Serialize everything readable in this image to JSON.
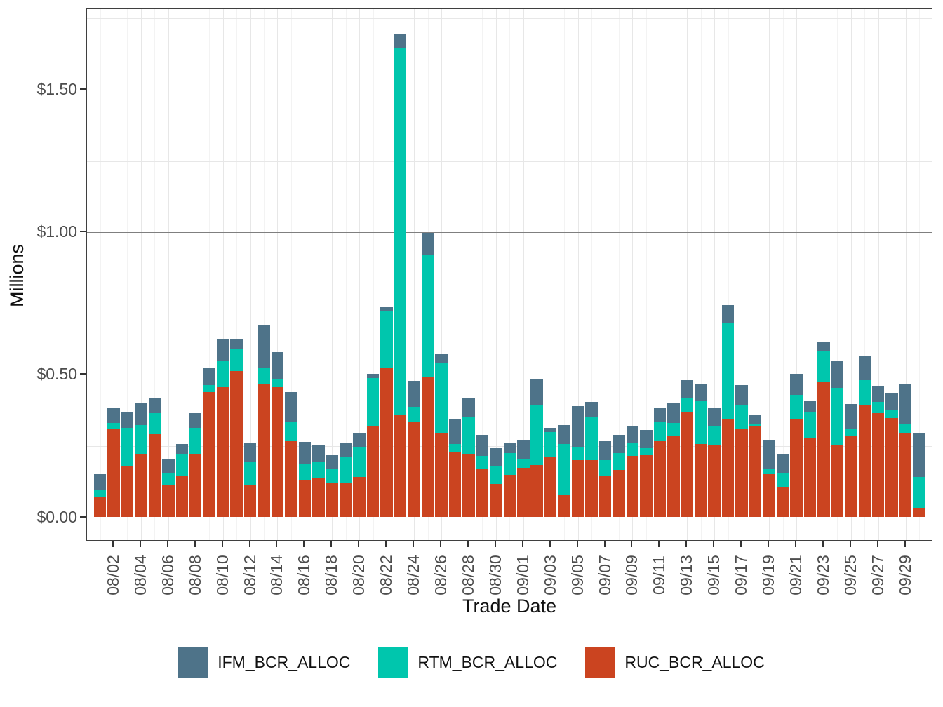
{
  "y_axis": {
    "title": "Millions",
    "tick_labels": [
      "$0.00",
      "$0.50",
      "$1.00",
      "$1.50"
    ],
    "tick_values": [
      0,
      0.5,
      1.0,
      1.5
    ],
    "minor_tick_values": [
      0.25,
      0.75,
      1.25,
      1.75
    ]
  },
  "x_axis": {
    "title": "Trade Date",
    "tick_labels": [
      "08/02",
      "08/04",
      "08/06",
      "08/08",
      "08/10",
      "08/12",
      "08/14",
      "08/16",
      "08/18",
      "08/20",
      "08/22",
      "08/24",
      "08/26",
      "08/28",
      "08/30",
      "09/01",
      "09/03",
      "09/05",
      "09/07",
      "09/09",
      "09/11",
      "09/13",
      "09/15",
      "09/17",
      "09/19",
      "09/21",
      "09/23",
      "09/25",
      "09/27",
      "09/29"
    ]
  },
  "legend": {
    "position": "bottom-center",
    "items": [
      {
        "label": "IFM_BCR_ALLOC",
        "color": "#4e7389"
      },
      {
        "label": "RTM_BCR_ALLOC",
        "color": "#00c6ad"
      },
      {
        "label": "RUC_BCR_ALLOC",
        "color": "#cb4420"
      }
    ]
  },
  "colors": {
    "background": "#ffffff",
    "panel_border": "#3f3f3f",
    "major_grid": "#7f7f7f",
    "minor_grid": "#e7e7e7",
    "tick_label": "#4d4d4d",
    "axis_title": "#111111"
  },
  "chart_data": {
    "type": "bar",
    "stacked": true,
    "title": "",
    "xlabel": "Trade Date",
    "ylabel": "Millions",
    "unit": "USD millions",
    "ylim": [
      -0.087,
      1.783
    ],
    "grid": true,
    "legend_position": "bottom",
    "x": [
      "08/01",
      "08/02",
      "08/03",
      "08/04",
      "08/05",
      "08/06",
      "08/07",
      "08/08",
      "08/09",
      "08/10",
      "08/11",
      "08/12",
      "08/13",
      "08/14",
      "08/15",
      "08/16",
      "08/17",
      "08/18",
      "08/19",
      "08/20",
      "08/21",
      "08/22",
      "08/23",
      "08/24",
      "08/25",
      "08/26",
      "08/27",
      "08/28",
      "08/29",
      "08/30",
      "08/31",
      "09/01",
      "09/02",
      "09/03",
      "09/04",
      "09/05",
      "09/06",
      "09/07",
      "09/08",
      "09/09",
      "09/10",
      "09/11",
      "09/12",
      "09/13",
      "09/14",
      "09/15",
      "09/16",
      "09/17",
      "09/18",
      "09/19",
      "09/20",
      "09/21",
      "09/22",
      "09/23",
      "09/24",
      "09/25",
      "09/26",
      "09/27",
      "09/28",
      "09/29",
      "09/30"
    ],
    "series": [
      {
        "name": "RUC_BCR_ALLOC",
        "color": "#cb4420",
        "values": [
          0.073,
          0.308,
          0.181,
          0.222,
          0.292,
          0.112,
          0.144,
          0.22,
          0.44,
          0.457,
          0.512,
          0.111,
          0.467,
          0.457,
          0.266,
          0.132,
          0.137,
          0.122,
          0.12,
          0.142,
          0.319,
          0.525,
          0.358,
          0.336,
          0.494,
          0.295,
          0.228,
          0.221,
          0.169,
          0.117,
          0.149,
          0.174,
          0.184,
          0.213,
          0.078,
          0.201,
          0.201,
          0.147,
          0.166,
          0.215,
          0.218,
          0.267,
          0.287,
          0.368,
          0.257,
          0.253,
          0.346,
          0.309,
          0.319,
          0.151,
          0.107,
          0.346,
          0.28,
          0.477,
          0.255,
          0.285,
          0.393,
          0.365,
          0.349,
          0.297,
          0.033
        ]
      },
      {
        "name": "RTM_BCR_ALLOC",
        "color": "#00c6ad",
        "values": [
          0.022,
          0.022,
          0.133,
          0.102,
          0.074,
          0.045,
          0.076,
          0.094,
          0.025,
          0.094,
          0.078,
          0.082,
          0.059,
          0.029,
          0.069,
          0.054,
          0.059,
          0.046,
          0.092,
          0.103,
          0.17,
          0.197,
          1.288,
          0.052,
          0.424,
          0.248,
          0.03,
          0.13,
          0.047,
          0.064,
          0.076,
          0.032,
          0.211,
          0.086,
          0.18,
          0.045,
          0.15,
          0.054,
          0.059,
          0.047,
          0.024,
          0.067,
          0.045,
          0.052,
          0.149,
          0.066,
          0.337,
          0.086,
          0.01,
          0.017,
          0.047,
          0.084,
          0.091,
          0.108,
          0.2,
          0.027,
          0.089,
          0.04,
          0.027,
          0.03,
          0.109
        ]
      },
      {
        "name": "IFM_BCR_ALLOC",
        "color": "#4e7389",
        "values": [
          0.057,
          0.054,
          0.057,
          0.076,
          0.052,
          0.049,
          0.038,
          0.052,
          0.059,
          0.076,
          0.035,
          0.066,
          0.148,
          0.094,
          0.105,
          0.078,
          0.056,
          0.05,
          0.047,
          0.05,
          0.015,
          0.018,
          0.047,
          0.091,
          0.081,
          0.03,
          0.087,
          0.069,
          0.073,
          0.062,
          0.037,
          0.066,
          0.091,
          0.015,
          0.066,
          0.144,
          0.054,
          0.066,
          0.064,
          0.057,
          0.065,
          0.051,
          0.071,
          0.062,
          0.063,
          0.064,
          0.062,
          0.069,
          0.032,
          0.102,
          0.067,
          0.074,
          0.037,
          0.032,
          0.096,
          0.086,
          0.083,
          0.055,
          0.06,
          0.142,
          0.155
        ]
      }
    ]
  }
}
